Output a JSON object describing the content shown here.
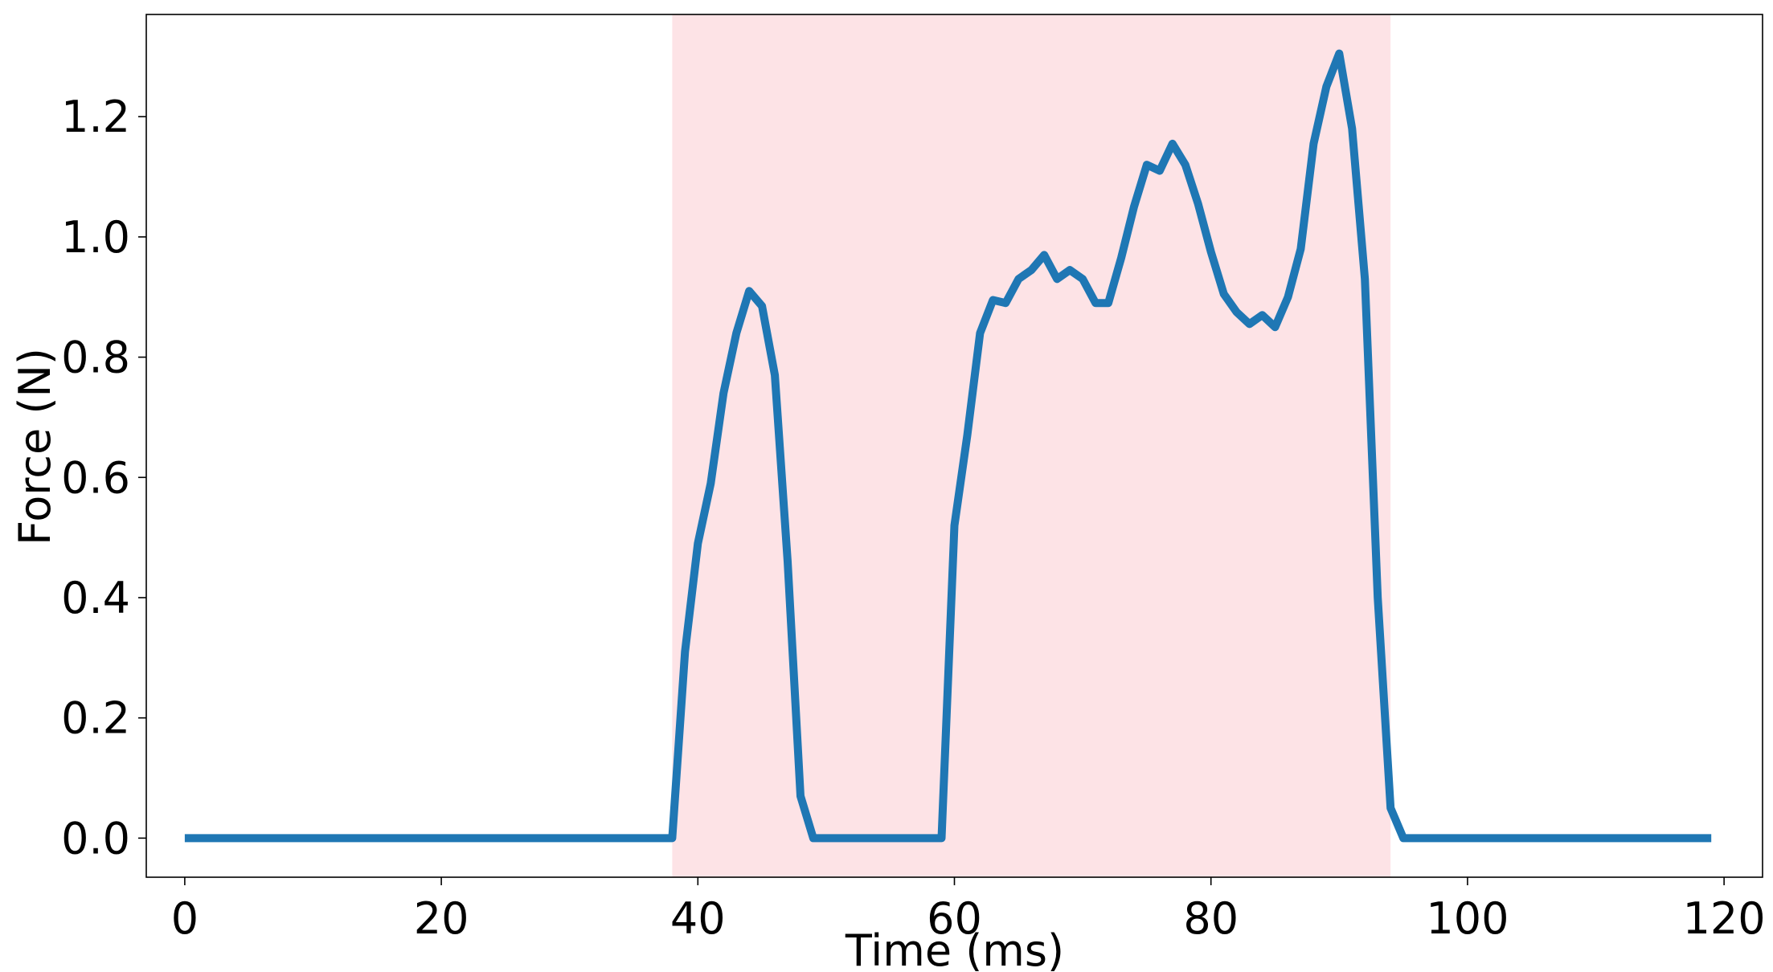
{
  "chart_data": {
    "type": "line",
    "title": "",
    "xlabel": "Time (ms)",
    "ylabel": "Force (N)",
    "xlim": [
      -3,
      123
    ],
    "ylim": [
      -0.065,
      1.37
    ],
    "xticks": [
      0,
      20,
      40,
      60,
      80,
      100,
      120
    ],
    "xtick_labels": [
      "0",
      "20",
      "40",
      "60",
      "80",
      "100",
      "120"
    ],
    "yticks": [
      0.0,
      0.2,
      0.4,
      0.6,
      0.8,
      1.0,
      1.2
    ],
    "ytick_labels": [
      "0.0",
      "0.2",
      "0.4",
      "0.6",
      "0.8",
      "1.0",
      "1.2"
    ],
    "grid": false,
    "highlight_region": {
      "x_start": 38,
      "x_end": 94,
      "color": "#fde3e6"
    },
    "series": [
      {
        "color": "#1f77b4",
        "x": [
          0,
          38,
          39,
          40,
          41,
          42,
          43,
          44,
          45,
          46,
          47,
          48,
          49,
          59,
          60,
          61,
          62,
          63,
          64,
          65,
          66,
          67,
          68,
          69,
          70,
          71,
          72,
          73,
          74,
          75,
          76,
          77,
          78,
          79,
          80,
          81,
          82,
          83,
          84,
          85,
          86,
          87,
          88,
          89,
          90,
          91,
          92,
          93,
          94,
          95,
          119
        ],
        "y": [
          0.0,
          0.0,
          0.31,
          0.49,
          0.59,
          0.74,
          0.84,
          0.91,
          0.885,
          0.77,
          0.46,
          0.07,
          0.0,
          0.0,
          0.52,
          0.67,
          0.84,
          0.895,
          0.89,
          0.93,
          0.945,
          0.97,
          0.93,
          0.945,
          0.93,
          0.89,
          0.89,
          0.965,
          1.05,
          1.12,
          1.11,
          1.155,
          1.12,
          1.055,
          0.975,
          0.905,
          0.875,
          0.855,
          0.87,
          0.85,
          0.9,
          0.98,
          1.155,
          1.25,
          1.305,
          1.18,
          0.93,
          0.4,
          0.05,
          0.0,
          0.0
        ]
      }
    ]
  }
}
